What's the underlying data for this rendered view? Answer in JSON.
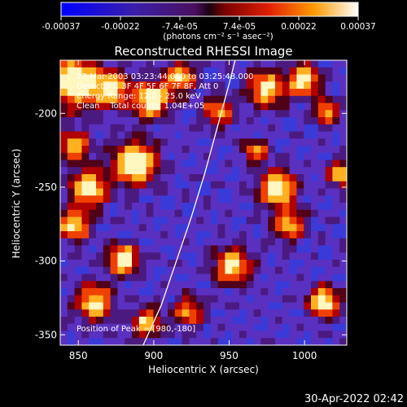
{
  "colorbar": {
    "ticks": [
      "-0.00037",
      "-0.00022",
      "-7.4e-05",
      "7.4e-05",
      "0.00022",
      "0.00037"
    ],
    "unit_label": "(photons cm⁻² s⁻¹ asec⁻²)",
    "range": [
      -0.00037,
      0.00037
    ]
  },
  "chart_data": {
    "type": "heatmap",
    "title": "Reconstructed RHESSI Image",
    "xlabel": "Heliocentric X (arcsec)",
    "ylabel": "Heliocentric Y (arcsec)",
    "xlim": [
      838,
      1028
    ],
    "ylim": [
      -357,
      -164
    ],
    "x_ticks": [
      850,
      900,
      950,
      1000
    ],
    "x_tick_labels": [
      "850",
      "900",
      "950",
      "1000"
    ],
    "y_ticks": [
      -200,
      -250,
      -300,
      -350
    ],
    "y_tick_labels": [
      "-200",
      "-250",
      "-300",
      "-350"
    ],
    "annotations": [
      "22-Mar-2003 03:23:44.000 to 03:25:48.000",
      "Detectors: 3F 4F 5F 6F 7F 8F, Att 0",
      "Energy Range: 12.0 - 25.0 keV",
      "Clean    Total counts: 1.04E+05"
    ],
    "peak_label": "Position of Peak = [980,-180]",
    "grid": false,
    "limb": [
      [
        893,
        -357
      ],
      [
        905,
        -330
      ],
      [
        915,
        -300
      ],
      [
        925,
        -270
      ],
      [
        934,
        -240
      ],
      [
        942,
        -210
      ],
      [
        950,
        -180
      ],
      [
        954,
        -164
      ]
    ]
  },
  "footer": {
    "timestamp": "30-Apr-2022 02:42"
  }
}
